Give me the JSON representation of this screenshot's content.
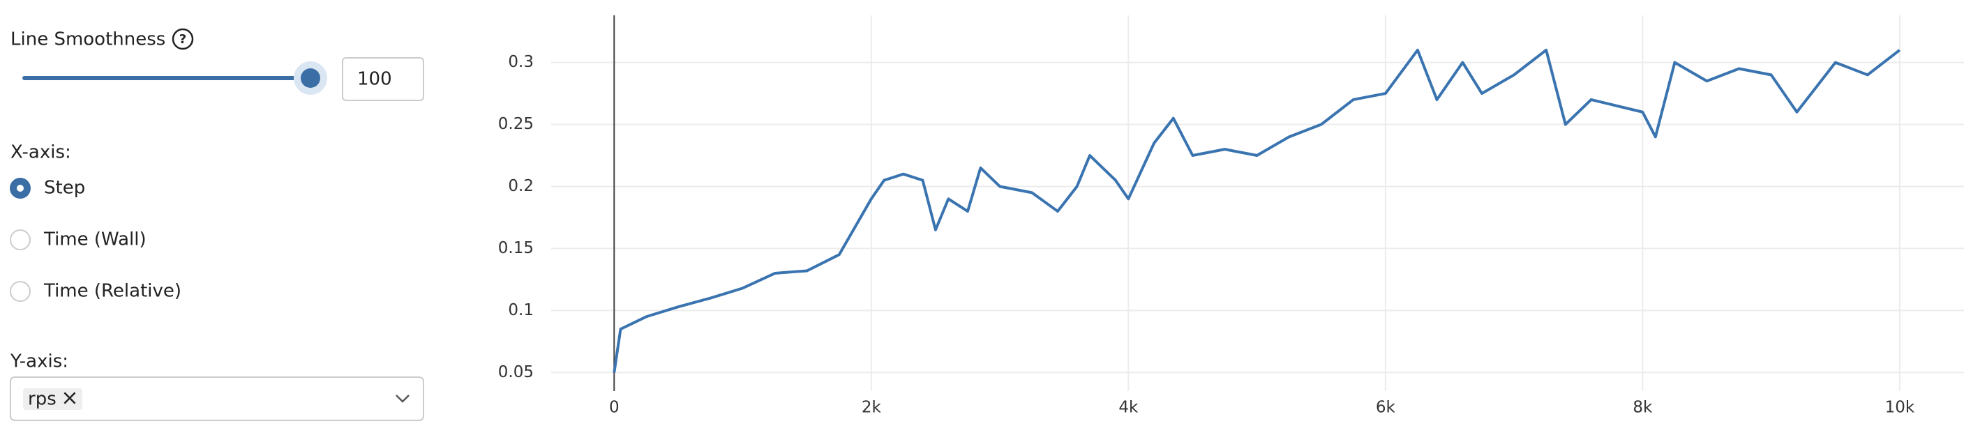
{
  "controls": {
    "smoothness_label": "Line Smoothness",
    "smoothness_value": 100,
    "help_icon": "?",
    "x_axis_label": "X-axis:",
    "x_options": [
      "Step",
      "Time (Wall)",
      "Time (Relative)"
    ],
    "y_axis_label": "Y-axis:",
    "y_selected": "rps",
    "remove_icon": "×"
  },
  "chart_data": {
    "type": "line",
    "x": [
      0,
      50,
      250,
      500,
      750,
      1000,
      1250,
      1500,
      1750,
      2000,
      2100,
      2250,
      2400,
      2500,
      2600,
      2750,
      2850,
      3000,
      3250,
      3450,
      3600,
      3700,
      3900,
      4000,
      4200,
      4350,
      4500,
      4750,
      5000,
      5250,
      5500,
      5750,
      6000,
      6250,
      6400,
      6600,
      6750,
      7000,
      7250,
      7400,
      7600,
      8000,
      8100,
      8250,
      8500,
      8750,
      9000,
      9200,
      9500,
      9750,
      10000
    ],
    "series": [
      {
        "name": "rps",
        "color": "#3a74b0",
        "values": [
          0.05,
          0.085,
          0.095,
          0.103,
          0.11,
          0.118,
          0.13,
          0.132,
          0.145,
          0.19,
          0.205,
          0.21,
          0.205,
          0.165,
          0.19,
          0.18,
          0.215,
          0.2,
          0.195,
          0.18,
          0.2,
          0.225,
          0.205,
          0.19,
          0.235,
          0.255,
          0.225,
          0.23,
          0.225,
          0.24,
          0.25,
          0.27,
          0.275,
          0.31,
          0.27,
          0.3,
          0.275,
          0.29,
          0.31,
          0.25,
          0.27,
          0.26,
          0.24,
          0.3,
          0.285,
          0.295,
          0.29,
          0.26,
          0.3,
          0.29,
          0.31
        ]
      }
    ],
    "xlim": [
      -490,
      10500
    ],
    "ylim": [
      0.035,
      0.338
    ],
    "xticks": [
      {
        "value": 0,
        "label": "0"
      },
      {
        "value": 2000,
        "label": "2k"
      },
      {
        "value": 4000,
        "label": "4k"
      },
      {
        "value": 6000,
        "label": "6k"
      },
      {
        "value": 8000,
        "label": "8k"
      },
      {
        "value": 10000,
        "label": "10k"
      }
    ],
    "yticks": [
      0.05,
      0.1,
      0.15,
      0.2,
      0.25,
      0.3
    ],
    "grid": true
  }
}
